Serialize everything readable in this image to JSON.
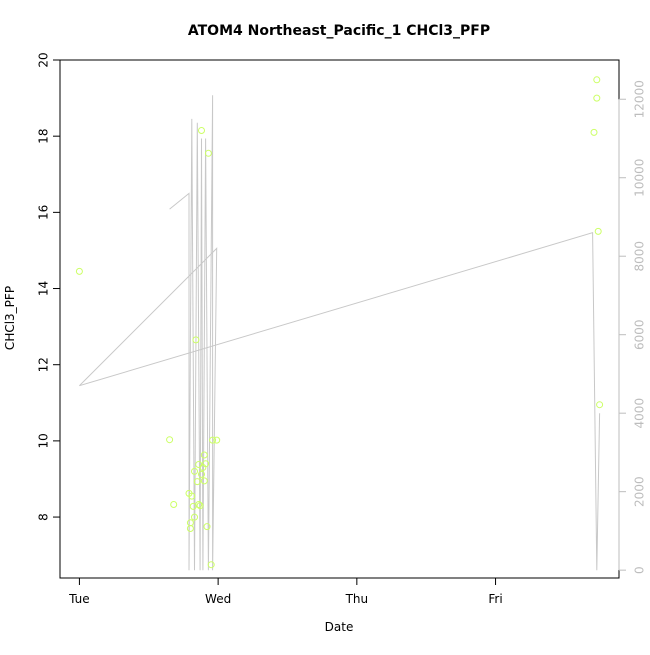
{
  "chart_data": {
    "type": "scatter",
    "title": "ATOM4 Northeast_Pacific_1 CHCl3_PFP",
    "xlabel": "Date",
    "ylabel": "CHCl3_PFP",
    "x_ticks": [
      "Tue",
      "Wed",
      "Thu",
      "Fri"
    ],
    "x_tick_days": [
      0,
      1,
      2,
      3
    ],
    "xlim_days": [
      -0.14,
      3.89
    ],
    "ylim": [
      6.4,
      20.0
    ],
    "y_ticks": [
      8,
      10,
      12,
      14,
      16,
      18,
      20
    ],
    "y2lim": [
      -200,
      13000
    ],
    "y2_ticks": [
      0,
      2000,
      4000,
      6000,
      8000,
      10000,
      12000
    ],
    "grid": false,
    "colors": {
      "points": "#ccff66",
      "line": "#c8c8c8",
      "axis": "#000000",
      "right_axis": "#bdbdbd"
    },
    "series": [
      {
        "kind": "points",
        "x": [
          0.0,
          0.65,
          0.68,
          0.79,
          0.8,
          0.8,
          0.81,
          0.82,
          0.83,
          0.83,
          0.84,
          0.85,
          0.86,
          0.86,
          0.87,
          0.88,
          0.88,
          0.89,
          0.9,
          0.9,
          0.91,
          0.92,
          0.93,
          0.95,
          0.96,
          0.99,
          3.71,
          3.73,
          3.73,
          3.74,
          3.75
        ],
        "y": [
          14.45,
          10.03,
          8.33,
          8.62,
          7.85,
          7.7,
          8.55,
          8.28,
          9.2,
          8.0,
          12.65,
          8.93,
          8.33,
          9.38,
          8.3,
          9.12,
          18.15,
          9.3,
          8.95,
          9.63,
          9.4,
          7.75,
          17.55,
          6.75,
          10.02,
          10.02,
          18.1,
          19.48,
          19.0,
          15.5,
          10.95
        ]
      },
      {
        "kind": "line",
        "x": [
          0.65,
          0.79,
          0.79,
          0.81,
          0.83,
          0.85,
          0.87,
          0.88,
          0.89,
          0.91,
          0.93,
          0.96,
          0.96,
          0.99,
          0.0,
          3.7,
          3.73,
          3.75
        ],
        "y": [
          9200,
          9600,
          0,
          11500,
          0,
          11400,
          0,
          11000,
          0,
          11000,
          0,
          12100,
          0,
          8200,
          4700,
          8600,
          0,
          4000
        ]
      }
    ]
  }
}
